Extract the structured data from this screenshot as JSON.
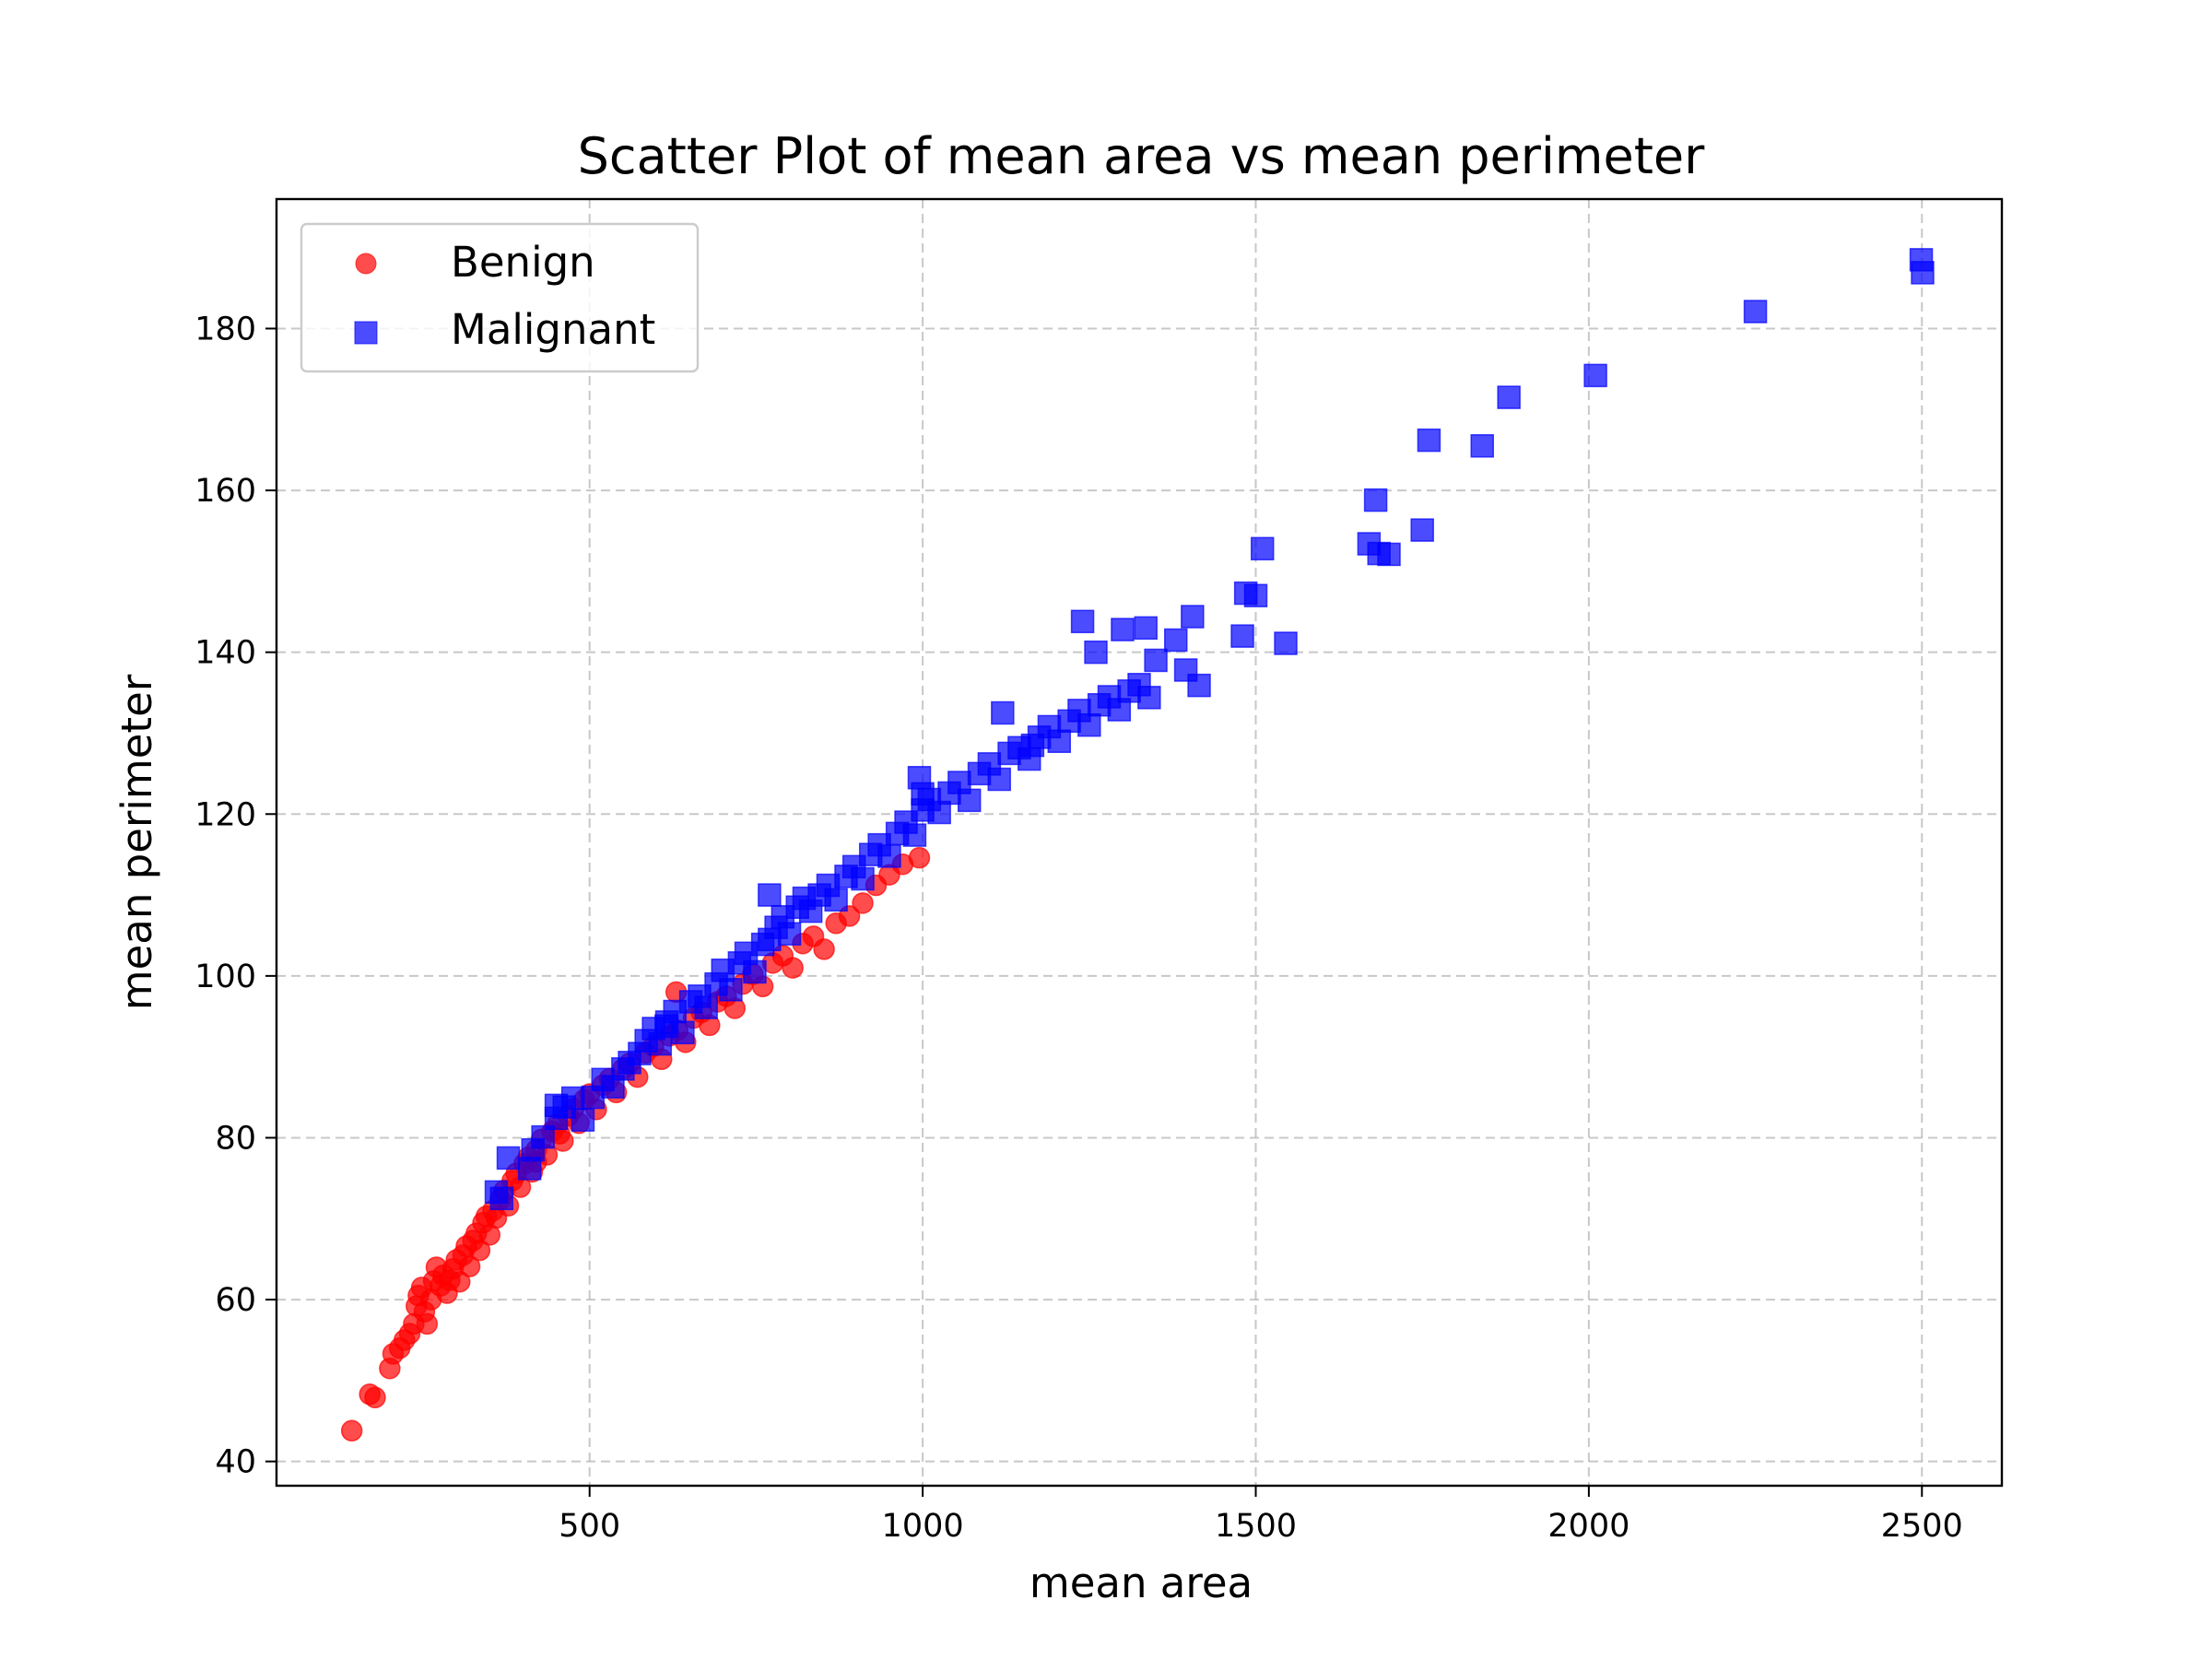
{
  "chart_data": {
    "type": "scatter",
    "title": "Scatter Plot of mean area vs mean perimeter",
    "xlabel": "mean area",
    "ylabel": "mean perimeter",
    "xlim": [
      30,
      2620
    ],
    "ylim": [
      37,
      196
    ],
    "xticks": [
      500,
      1000,
      1500,
      2000,
      2500
    ],
    "yticks": [
      40,
      60,
      80,
      100,
      120,
      140,
      160,
      180
    ],
    "grid": true,
    "legend_position": "upper-left",
    "series": [
      {
        "name": "Benign",
        "marker": "circle",
        "color": "#ff0000",
        "points": [
          [
            143,
            43.8
          ],
          [
            170,
            48.3
          ],
          [
            178,
            47.9
          ],
          [
            200,
            51.5
          ],
          [
            205,
            53.3
          ],
          [
            215,
            54.0
          ],
          [
            222,
            55.0
          ],
          [
            230,
            55.8
          ],
          [
            236,
            57.0
          ],
          [
            240,
            59.2
          ],
          [
            243,
            60.5
          ],
          [
            248,
            61.5
          ],
          [
            252,
            58.5
          ],
          [
            256,
            57.0
          ],
          [
            262,
            60.0
          ],
          [
            266,
            62.3
          ],
          [
            270,
            64.0
          ],
          [
            276,
            61.7
          ],
          [
            280,
            63.0
          ],
          [
            286,
            60.8
          ],
          [
            290,
            62.4
          ],
          [
            295,
            63.8
          ],
          [
            300,
            64.9
          ],
          [
            305,
            62.2
          ],
          [
            310,
            65.5
          ],
          [
            315,
            66.6
          ],
          [
            320,
            64.1
          ],
          [
            325,
            67.3
          ],
          [
            330,
            68.2
          ],
          [
            335,
            66.1
          ],
          [
            340,
            69.5
          ],
          [
            345,
            70.3
          ],
          [
            350,
            68.0
          ],
          [
            355,
            71.0
          ],
          [
            360,
            70.1
          ],
          [
            366,
            72.4
          ],
          [
            372,
            73.5
          ],
          [
            378,
            71.6
          ],
          [
            384,
            74.7
          ],
          [
            390,
            75.6
          ],
          [
            396,
            73.9
          ],
          [
            402,
            76.8
          ],
          [
            408,
            77.6
          ],
          [
            414,
            75.8
          ],
          [
            420,
            78.5
          ],
          [
            428,
            79.8
          ],
          [
            436,
            77.9
          ],
          [
            444,
            80.8
          ],
          [
            452,
            81.7
          ],
          [
            460,
            79.6
          ],
          [
            468,
            82.7
          ],
          [
            476,
            83.6
          ],
          [
            484,
            81.8
          ],
          [
            492,
            84.7
          ],
          [
            500,
            85.4
          ],
          [
            510,
            83.5
          ],
          [
            520,
            86.5
          ],
          [
            530,
            87.3
          ],
          [
            540,
            85.6
          ],
          [
            550,
            88.5
          ],
          [
            560,
            89.2
          ],
          [
            572,
            87.5
          ],
          [
            584,
            90.5
          ],
          [
            596,
            91.3
          ],
          [
            608,
            89.7
          ],
          [
            620,
            92.6
          ],
          [
            632,
            93.3
          ],
          [
            644,
            91.8
          ],
          [
            656,
            94.8
          ],
          [
            668,
            95.5
          ],
          [
            680,
            93.9
          ],
          [
            692,
            96.8
          ],
          [
            705,
            97.5
          ],
          [
            718,
            96.0
          ],
          [
            730,
            99.0
          ],
          [
            745,
            100.2
          ],
          [
            760,
            98.7
          ],
          [
            775,
            101.6
          ],
          [
            790,
            102.5
          ],
          [
            805,
            101.0
          ],
          [
            820,
            104.0
          ],
          [
            836,
            104.9
          ],
          [
            852,
            103.3
          ],
          [
            870,
            106.5
          ],
          [
            890,
            107.4
          ],
          [
            910,
            109.0
          ],
          [
            930,
            111.2
          ],
          [
            950,
            112.5
          ],
          [
            970,
            113.8
          ],
          [
            995,
            114.6
          ],
          [
            630,
            98.0
          ],
          [
            455,
            80.5
          ],
          [
            420,
            77.0
          ]
        ]
      },
      {
        "name": "Malignant",
        "marker": "square",
        "color": "#0000ff",
        "points": [
          [
            360,
            73.3
          ],
          [
            368,
            72.5
          ],
          [
            378,
            77.5
          ],
          [
            410,
            76.2
          ],
          [
            415,
            78.5
          ],
          [
            430,
            80.1
          ],
          [
            450,
            82.4
          ],
          [
            462,
            83.8
          ],
          [
            475,
            84.9
          ],
          [
            490,
            82.2
          ],
          [
            505,
            85.0
          ],
          [
            520,
            87.2
          ],
          [
            535,
            86.3
          ],
          [
            550,
            88.5
          ],
          [
            560,
            89.3
          ],
          [
            575,
            90.4
          ],
          [
            585,
            92.0
          ],
          [
            596,
            93.5
          ],
          [
            606,
            91.6
          ],
          [
            616,
            94.3
          ],
          [
            628,
            95.6
          ],
          [
            640,
            93.0
          ],
          [
            652,
            96.8
          ],
          [
            665,
            97.5
          ],
          [
            675,
            96.1
          ],
          [
            690,
            99.0
          ],
          [
            700,
            100.7
          ],
          [
            712,
            98.3
          ],
          [
            725,
            101.6
          ],
          [
            735,
            102.8
          ],
          [
            748,
            100.5
          ],
          [
            760,
            103.9
          ],
          [
            770,
            104.5
          ],
          [
            780,
            106.0
          ],
          [
            790,
            107.3
          ],
          [
            800,
            105.2
          ],
          [
            812,
            108.5
          ],
          [
            822,
            109.6
          ],
          [
            832,
            108.0
          ],
          [
            845,
            110.0
          ],
          [
            858,
            111.2
          ],
          [
            870,
            109.4
          ],
          [
            885,
            112.3
          ],
          [
            897,
            113.5
          ],
          [
            910,
            112.0
          ],
          [
            922,
            115.0
          ],
          [
            935,
            116.2
          ],
          [
            950,
            114.8
          ],
          [
            962,
            117.6
          ],
          [
            975,
            119.0
          ],
          [
            988,
            117.4
          ],
          [
            1000,
            120.5
          ],
          [
            1010,
            121.8
          ],
          [
            1025,
            120.2
          ],
          [
            1040,
            122.6
          ],
          [
            1055,
            123.9
          ],
          [
            1070,
            121.7
          ],
          [
            1085,
            125.0
          ],
          [
            1100,
            126.2
          ],
          [
            1115,
            124.3
          ],
          [
            1130,
            127.5
          ],
          [
            1145,
            128.2
          ],
          [
            1160,
            126.8
          ],
          [
            1175,
            129.5
          ],
          [
            1190,
            130.8
          ],
          [
            1205,
            129.0
          ],
          [
            1220,
            131.5
          ],
          [
            1235,
            132.8
          ],
          [
            1250,
            131.0
          ],
          [
            1265,
            133.5
          ],
          [
            1280,
            134.5
          ],
          [
            1295,
            132.9
          ],
          [
            1310,
            135.2
          ],
          [
            1325,
            136.0
          ],
          [
            1340,
            134.4
          ],
          [
            995,
            124.5
          ],
          [
            1000,
            122.5
          ],
          [
            1120,
            132.5
          ],
          [
            1165,
            128.5
          ],
          [
            1240,
            143.8
          ],
          [
            1260,
            140.0
          ],
          [
            1300,
            142.8
          ],
          [
            1335,
            143.0
          ],
          [
            1350,
            139.0
          ],
          [
            1380,
            141.5
          ],
          [
            1395,
            137.8
          ],
          [
            1405,
            144.4
          ],
          [
            1415,
            135.9
          ],
          [
            1485,
            147.3
          ],
          [
            1500,
            147.0
          ],
          [
            1510,
            152.8
          ],
          [
            1480,
            142.0
          ],
          [
            1545,
            141.1
          ],
          [
            1670,
            153.4
          ],
          [
            1680,
            158.8
          ],
          [
            1685,
            152.2
          ],
          [
            1700,
            152.1
          ],
          [
            1750,
            155.1
          ],
          [
            1760,
            166.2
          ],
          [
            1840,
            165.5
          ],
          [
            1880,
            171.5
          ],
          [
            2010,
            174.2
          ],
          [
            2250,
            182.1
          ],
          [
            2499,
            188.5
          ],
          [
            2501,
            186.9
          ],
          [
            770,
            110.0
          ],
          [
            615,
            93.8
          ],
          [
            450,
            84.0
          ]
        ]
      }
    ]
  }
}
